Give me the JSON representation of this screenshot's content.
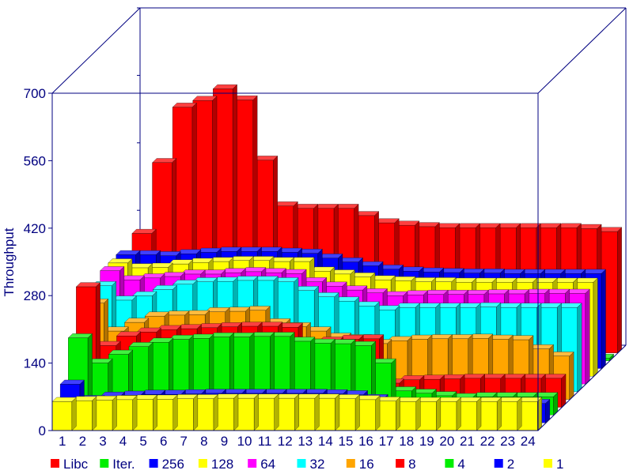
{
  "chart_data": {
    "type": "bar",
    "subtype": "3d-grouped-bar",
    "title": "",
    "xlabel": "",
    "ylabel": "Throughput",
    "ylim": [
      0,
      700
    ],
    "yticks": [
      0,
      140,
      280,
      420,
      560,
      700
    ],
    "categories": [
      "1",
      "2",
      "3",
      "4",
      "5",
      "6",
      "7",
      "8",
      "9",
      "10",
      "11",
      "12",
      "13",
      "14",
      "15",
      "16",
      "17",
      "18",
      "19",
      "20",
      "21",
      "22",
      "23",
      "24"
    ],
    "grid": false,
    "legend_position": "bottom",
    "series": [
      {
        "name": "1",
        "color": "#ffff00",
        "values": [
          60,
          62,
          63,
          64,
          65,
          65,
          66,
          66,
          67,
          67,
          67,
          67,
          67,
          67,
          66,
          64,
          61,
          60,
          60,
          60,
          60,
          60,
          60,
          60
        ]
      },
      {
        "name": "2",
        "color": "#0000ff",
        "values": [
          80,
          48,
          55,
          57,
          59,
          59,
          60,
          61,
          61,
          61,
          61,
          61,
          61,
          60,
          58,
          50,
          40,
          40,
          40,
          40,
          40,
          40,
          40,
          40
        ]
      },
      {
        "name": "4",
        "color": "#00ee00",
        "values": [
          160,
          108,
          126,
          142,
          151,
          157,
          159,
          162,
          162,
          163,
          163,
          153,
          149,
          148,
          144,
          108,
          50,
          45,
          40,
          36,
          38,
          38,
          38,
          38
        ]
      },
      {
        "name": "8",
        "color": "#ff0000",
        "values": [
          250,
          128,
          148,
          156,
          161,
          163,
          165,
          167,
          168,
          168,
          166,
          133,
          137,
          141,
          142,
          50,
          57,
          58,
          59,
          60,
          60,
          60,
          60,
          60
        ]
      },
      {
        "name": "16",
        "color": "#ffa500",
        "values": [
          200,
          142,
          160,
          173,
          175,
          176,
          182,
          183,
          185,
          159,
          151,
          142,
          129,
          126,
          116,
          122,
          125,
          126,
          126,
          127,
          125,
          124,
          105,
          90
        ]
      },
      {
        "name": "32",
        "color": "#00ffff",
        "values": [
          220,
          190,
          199,
          212,
          223,
          228,
          229,
          231,
          231,
          228,
          210,
          197,
          188,
          178,
          170,
          175,
          175,
          175,
          175,
          176,
          175,
          175,
          175,
          175
        ]
      },
      {
        "name": "64",
        "color": "#ff00ff",
        "values": [
          235,
          216,
          220,
          223,
          228,
          228,
          231,
          233,
          231,
          229,
          212,
          203,
          195,
          189,
          183,
          185,
          186,
          186,
          186,
          187,
          187,
          188,
          188,
          188
        ]
      },
      {
        "name": "128",
        "color": "#ffff00",
        "values": [
          235,
          225,
          226,
          233,
          236,
          238,
          240,
          240,
          238,
          238,
          218,
          212,
          206,
          200,
          198,
          196,
          196,
          195,
          195,
          195,
          195,
          195,
          195,
          195
        ]
      },
      {
        "name": "256",
        "color": "#0000ff",
        "values": [
          236,
          236,
          234,
          238,
          241,
          243,
          243,
          243,
          241,
          239,
          229,
          221,
          213,
          206,
          202,
          200,
          199,
          198,
          198,
          197,
          197,
          197,
          197,
          197
        ]
      },
      {
        "name": "Iter.",
        "color": "#00ee00",
        "values": [
          5,
          5,
          5,
          5,
          5,
          5,
          5,
          5,
          5,
          5,
          5,
          5,
          5,
          5,
          5,
          5,
          5,
          5,
          5,
          5,
          5,
          5,
          5,
          5
        ]
      },
      {
        "name": "Libc",
        "color": "#ff0000",
        "values": [
          248,
          395,
          510,
          524,
          548,
          525,
          400,
          305,
          300,
          300,
          300,
          285,
          270,
          265,
          262,
          260,
          260,
          260,
          260,
          260,
          260,
          260,
          258,
          252
        ]
      }
    ]
  }
}
